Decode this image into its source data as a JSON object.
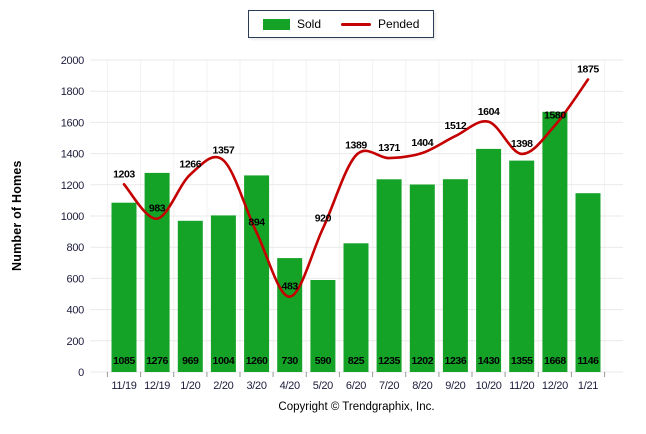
{
  "legend": {
    "sold_label": "Sold",
    "pended_label": "Pended"
  },
  "footer": {
    "copyright": "Copyright © Trendgraphix, Inc."
  },
  "colors": {
    "sold_green": "#15a327",
    "pended_red": "#c40000",
    "grid_horizontal": "#e9e9e9",
    "grid_vertical": "#f3f3f3",
    "axis_tick": "#999999",
    "axis_text": "#1c1c3c",
    "label_text": "#000000",
    "legend_border": "#2b3a55"
  },
  "chart_data": {
    "type": "combo",
    "categories": [
      "11/19",
      "12/19",
      "1/20",
      "2/20",
      "3/20",
      "4/20",
      "5/20",
      "6/20",
      "7/20",
      "8/20",
      "9/20",
      "10/20",
      "11/20",
      "12/20",
      "1/21"
    ],
    "series": [
      {
        "name": "Sold",
        "type": "bar",
        "color": "#15a327",
        "values": [
          1085,
          1276,
          969,
          1004,
          1260,
          730,
          590,
          825,
          1235,
          1202,
          1236,
          1430,
          1355,
          1668,
          1146
        ]
      },
      {
        "name": "Pended",
        "type": "line",
        "color": "#c40000",
        "values": [
          1203,
          983,
          1266,
          1357,
          894,
          483,
          920,
          1389,
          1371,
          1404,
          1512,
          1604,
          1398,
          1580,
          1875
        ]
      }
    ],
    "title": "",
    "xlabel": "",
    "ylabel": "Number of Homes",
    "ylim": [
      0,
      2000
    ],
    "ytick_step": 200,
    "grid": true,
    "legend_position": "top-center",
    "data_labels": true
  }
}
